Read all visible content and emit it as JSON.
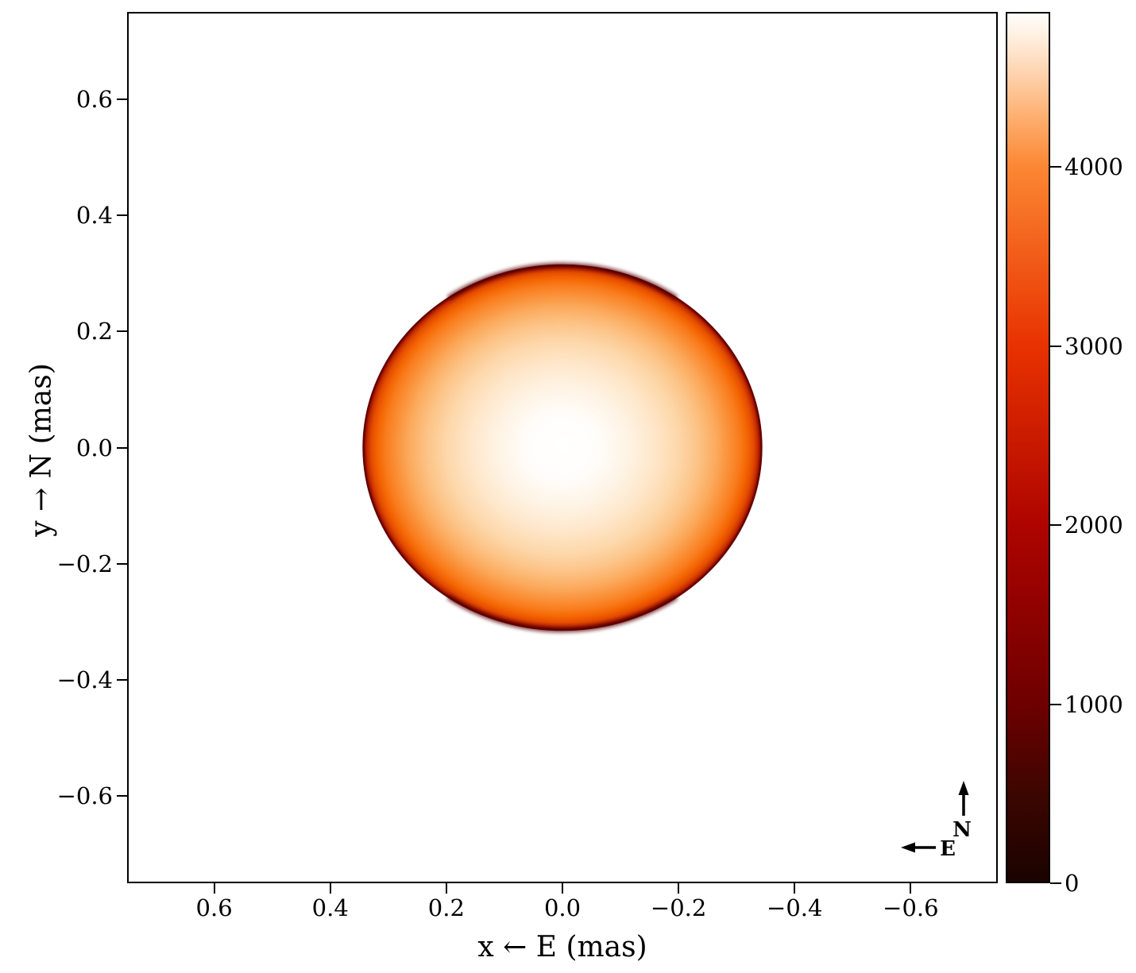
{
  "chart_data": {
    "type": "heatmap",
    "title": "",
    "description": "Sky-projected intensity image of a limb-darkened, slightly oblate stellar disk centered at the origin, with a heat-style colorbar (black-red-orange-white) and an N/E orientation compass.",
    "xlabel": "x ← E (mas)",
    "ylabel": "y → N (mas)",
    "xlim": [
      0.75,
      -0.75
    ],
    "ylim": [
      -0.75,
      0.75
    ],
    "x_ticks": {
      "values": [
        0.6,
        0.4,
        0.2,
        0.0,
        -0.2,
        -0.4,
        -0.6
      ],
      "labels": [
        "0.6",
        "0.4",
        "0.2",
        "0.0",
        "−0.2",
        "−0.4",
        "−0.6"
      ]
    },
    "y_ticks": {
      "values": [
        0.6,
        0.4,
        0.2,
        0.0,
        -0.2,
        -0.4,
        -0.6
      ],
      "labels": [
        "0.6",
        "0.4",
        "0.2",
        "0.0",
        "−0.2",
        "−0.4",
        "−0.6"
      ]
    },
    "colorbar": {
      "vmin": 0,
      "vmax": 4865,
      "tick_values": [
        0,
        1000,
        2000,
        3000,
        4000
      ],
      "tick_labels": [
        "0",
        "1000",
        "2000",
        "3000",
        "4000"
      ],
      "colormap": "heat (black → dark red → red → orange → white)",
      "gradient_stops": [
        {
          "pos": 0,
          "color": "#1a0300"
        },
        {
          "pos": 10,
          "color": "#3c0600"
        },
        {
          "pos": 20.6,
          "color": "#6e0000"
        },
        {
          "pos": 41.1,
          "color": "#ae0400"
        },
        {
          "pos": 61.7,
          "color": "#e83200"
        },
        {
          "pos": 82.2,
          "color": "#fb8632"
        },
        {
          "pos": 88,
          "color": "#fdae6f"
        },
        {
          "pos": 93,
          "color": "#fed2ae"
        },
        {
          "pos": 97,
          "color": "#ffeddc"
        },
        {
          "pos": 100,
          "color": "#fffefc"
        }
      ]
    },
    "disk": {
      "center_mas": [
        0.0,
        0.0
      ],
      "radius_x_mas": 0.344,
      "radius_y_mas": 0.315,
      "peak_value": 4865,
      "center_color": "#ffffff",
      "rim_color": "#730200",
      "gradient_stops": [
        {
          "offset": 0,
          "color": "#ffffff"
        },
        {
          "offset": 18,
          "color": "#fffdfa"
        },
        {
          "offset": 32,
          "color": "#fef4e6"
        },
        {
          "offset": 46,
          "color": "#fee7cb"
        },
        {
          "offset": 58,
          "color": "#fdd8ab"
        },
        {
          "offset": 68,
          "color": "#fcc488"
        },
        {
          "offset": 77,
          "color": "#fbab5e"
        },
        {
          "offset": 84,
          "color": "#fa9038"
        },
        {
          "offset": 89,
          "color": "#f97c1c"
        },
        {
          "offset": 93,
          "color": "#f46503"
        },
        {
          "offset": 96,
          "color": "#e54d00"
        },
        {
          "offset": 98,
          "color": "#c63000"
        },
        {
          "offset": 99.3,
          "color": "#9a1000"
        },
        {
          "offset": 100,
          "color": "#730200"
        }
      ]
    },
    "compass": {
      "north_label": "N",
      "east_label": "E"
    },
    "axis_color": "#000000",
    "grid": false,
    "legend": null
  }
}
